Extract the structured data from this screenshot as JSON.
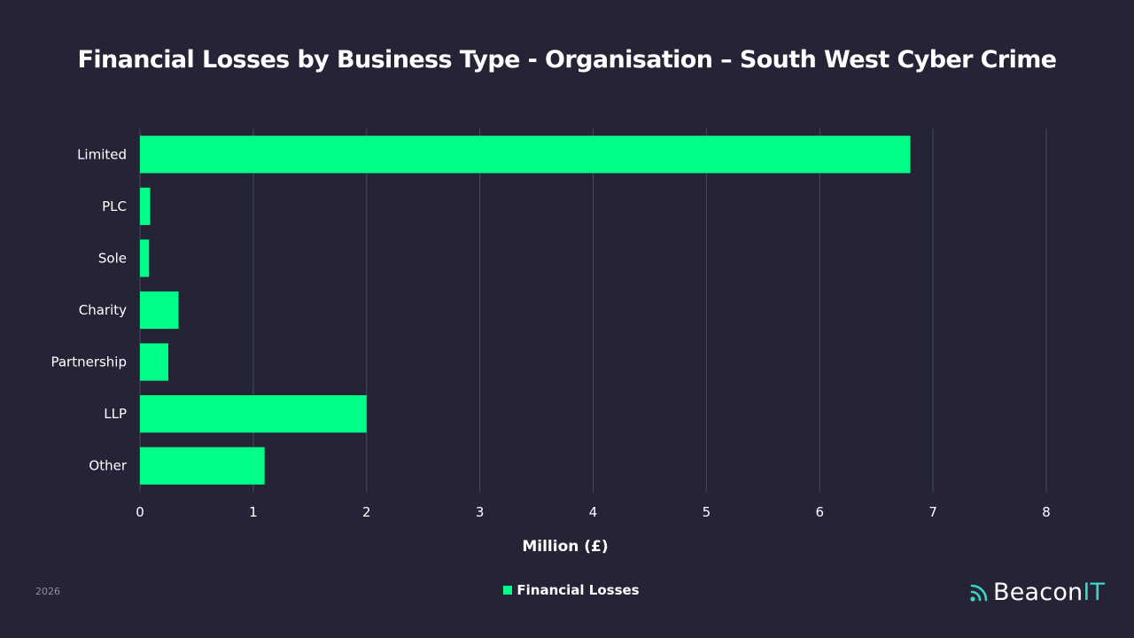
{
  "chart_data": {
    "type": "bar",
    "orientation": "horizontal",
    "title": "Financial Losses by Business Type - Organisation – South West Cyber Crime",
    "xlabel": "Million (£)",
    "ylabel": "",
    "categories": [
      "Limited",
      "PLC",
      "Sole",
      "Charity",
      "Partnership",
      "LLP",
      "Other"
    ],
    "series": [
      {
        "name": "Financial Losses",
        "values": [
          6.8,
          0.09,
          0.08,
          0.34,
          0.25,
          2.0,
          1.1
        ]
      }
    ],
    "xlim": [
      0,
      8
    ],
    "xticks": [
      "0",
      "1",
      "2",
      "3",
      "4",
      "5",
      "6",
      "7",
      "8"
    ],
    "grid": true,
    "legend": "bottom-center",
    "bar_color": "#00ff88",
    "grid_color": "#4a4866"
  },
  "footer": {
    "year": "2026",
    "brand_main": "Beacon",
    "brand_accent": "IT",
    "brand_icon": "signal-waves-icon"
  }
}
